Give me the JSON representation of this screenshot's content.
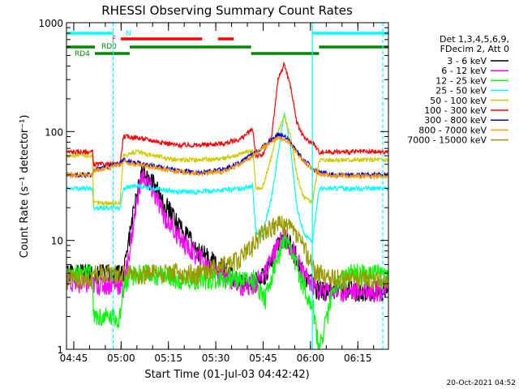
{
  "chart_data": {
    "type": "line",
    "title": "RHESSI Observing Summary Count Rates",
    "xlabel": "Start Time (01-Jul-03 04:42:42)",
    "ylabel": "Count Rate (s⁻¹ detector⁻¹)",
    "yscale": "log",
    "ylim": [
      1,
      1000
    ],
    "xlim_minutes": [
      0,
      102
    ],
    "x_unit": "minutes after 04:42:42",
    "x_ticks": [
      {
        "label": "04:45",
        "minute": 2.3
      },
      {
        "label": "05:00",
        "minute": 17.3
      },
      {
        "label": "05:15",
        "minute": 32.3
      },
      {
        "label": "05:30",
        "minute": 47.3
      },
      {
        "label": "05:45",
        "minute": 62.3
      },
      {
        "label": "06:00",
        "minute": 77.3
      },
      {
        "label": "06:15",
        "minute": 92.3
      }
    ],
    "y_ticks": [
      {
        "label": "1",
        "value": 1
      },
      {
        "label": "10",
        "value": 10
      },
      {
        "label": "100",
        "value": 100
      },
      {
        "label": "1000",
        "value": 1000
      }
    ],
    "legend_header": [
      "Det 1,3,4,5,6,9,",
      "FDecim 2, Att 0"
    ],
    "series": [
      {
        "name": "3 - 6 keV",
        "color": "#000000",
        "x": [
          0,
          8.3,
          8.5,
          14,
          17,
          18,
          22,
          24,
          27,
          32,
          38,
          42,
          48,
          55,
          59,
          63,
          66,
          69,
          72,
          75,
          78,
          80
        ],
        "y": [
          5,
          5,
          5,
          5,
          5,
          5,
          25,
          45,
          35,
          20,
          11,
          8,
          6,
          4,
          4,
          5,
          8,
          11,
          8,
          5,
          4,
          3.5
        ]
      },
      {
        "name": "6 - 12 keV",
        "color": "#ff00ff",
        "x": [
          0,
          8.3,
          8.5,
          14,
          17,
          18,
          22,
          24,
          27,
          32,
          38,
          42,
          48,
          55,
          59,
          63,
          66,
          69,
          72,
          75,
          78,
          80
        ],
        "y": [
          4,
          4,
          4,
          4,
          4,
          3.5,
          20,
          40,
          30,
          15,
          9,
          7,
          5,
          4,
          4,
          5,
          8,
          11,
          8,
          5,
          4,
          3.5
        ]
      },
      {
        "name": "12 - 25 keV",
        "color": "#00ff00",
        "x": [
          0,
          8.3,
          8.5,
          14,
          17,
          18,
          22,
          28,
          35,
          42,
          50,
          55,
          59,
          63,
          66,
          69,
          72,
          75,
          78,
          80,
          85,
          90,
          94,
          100
        ],
        "y": [
          5,
          5,
          2,
          2,
          2,
          4,
          5,
          5,
          4.5,
          4.5,
          4.5,
          4.5,
          4.5,
          3,
          6,
          10,
          7,
          4,
          2.5,
          1,
          4,
          5,
          5,
          5
        ]
      },
      {
        "name": "25 - 50 keV",
        "color": "#00ffff",
        "x": [
          0,
          8.3,
          8.5,
          14,
          17,
          18,
          22,
          28,
          35,
          42,
          50,
          55,
          59,
          60,
          62,
          65,
          67,
          69,
          71,
          73,
          75,
          77,
          78,
          80,
          85,
          90,
          94,
          100
        ],
        "y": [
          30,
          30,
          20,
          20,
          20,
          30,
          32,
          30,
          28,
          28,
          29,
          30,
          32,
          12,
          11,
          25,
          60,
          150,
          70,
          20,
          12,
          10,
          10,
          30,
          30,
          30,
          30,
          30
        ]
      },
      {
        "name": "50 - 100 keV",
        "color": "#cccc00",
        "x": [
          0,
          8.3,
          8.5,
          14,
          17,
          18,
          22,
          28,
          35,
          42,
          50,
          55,
          59,
          60,
          62,
          65,
          67,
          69,
          71,
          73,
          75,
          77,
          78,
          80,
          85,
          90,
          94,
          100
        ],
        "y": [
          60,
          60,
          22,
          22,
          22,
          60,
          65,
          60,
          55,
          55,
          57,
          62,
          68,
          30,
          30,
          60,
          100,
          140,
          90,
          40,
          25,
          23,
          23,
          55,
          55,
          55,
          55,
          55
        ]
      },
      {
        "name": "100 - 300 keV",
        "color": "#ff0000",
        "x": [
          0,
          8.3,
          8.5,
          14,
          17,
          18,
          22,
          28,
          35,
          42,
          50,
          55,
          59,
          60,
          62,
          65,
          67,
          69,
          71,
          73,
          75,
          77,
          78,
          80,
          85,
          90,
          94,
          100
        ],
        "y": [
          65,
          65,
          50,
          50,
          50,
          90,
          88,
          82,
          75,
          75,
          78,
          85,
          105,
          60,
          60,
          90,
          300,
          420,
          260,
          120,
          90,
          80,
          80,
          65,
          65,
          65,
          65,
          65
        ]
      },
      {
        "name": "300 - 800 keV",
        "color": "#0000cc",
        "x": [
          0,
          8.3,
          8.5,
          14,
          17,
          18,
          22,
          28,
          35,
          42,
          50,
          55,
          59,
          60,
          62,
          65,
          67,
          69,
          71,
          73,
          75,
          77,
          78,
          80,
          85,
          90,
          94,
          100
        ],
        "y": [
          40,
          40,
          45,
          48,
          52,
          55,
          52,
          48,
          44,
          42,
          45,
          52,
          62,
          65,
          72,
          85,
          95,
          92,
          80,
          65,
          55,
          50,
          45,
          42,
          40,
          40,
          40,
          40
        ]
      },
      {
        "name": "800 - 7000 keV",
        "color": "#ff9900",
        "x": [
          0,
          8.3,
          8.5,
          14,
          17,
          18,
          22,
          28,
          35,
          42,
          50,
          55,
          59,
          60,
          62,
          65,
          67,
          69,
          71,
          73,
          75,
          77,
          78,
          80,
          85,
          90,
          94,
          100
        ],
        "y": [
          40,
          40,
          44,
          47,
          50,
          53,
          50,
          47,
          43,
          41,
          43,
          50,
          60,
          63,
          70,
          80,
          88,
          86,
          78,
          63,
          53,
          48,
          44,
          41,
          39,
          39,
          39,
          39
        ]
      },
      {
        "name": "7000 - 15000 keV",
        "color": "#999900",
        "x": [
          0,
          8.3,
          8.5,
          14,
          17,
          18,
          22,
          28,
          35,
          42,
          50,
          55,
          59,
          60,
          62,
          65,
          67,
          69,
          71,
          73,
          75,
          77,
          78,
          80,
          85,
          90,
          94,
          100
        ],
        "y": [
          4.5,
          4.5,
          5,
          5,
          5,
          5,
          5,
          5,
          5,
          5,
          6,
          7,
          9,
          10,
          12,
          13,
          14,
          14,
          13,
          11,
          9,
          7,
          5.5,
          5,
          4.5,
          4.5,
          4.5,
          4.5
        ]
      }
    ],
    "vertical_markers": [
      {
        "minute": 14.8,
        "color": "#00ffff",
        "style": "dashed"
      },
      {
        "minute": 77.9,
        "color": "#00ffff",
        "style": "solid"
      },
      {
        "minute": 100.2,
        "color": "#00ffff",
        "style": "dashed"
      }
    ],
    "flag_bars": [
      {
        "label": "N",
        "color": "#00ffff",
        "row": 1,
        "segments": [
          [
            0,
            14.8
          ],
          [
            77.9,
            102
          ]
        ]
      },
      {
        "label": "F",
        "color": "#ff0000",
        "row": 2,
        "segments": [
          [
            17.2,
            43
          ],
          [
            48,
            53
          ]
        ]
      },
      {
        "label": "RD0",
        "color": "#008800",
        "row": 3,
        "segments": [
          [
            0,
            9
          ],
          [
            20,
            58.5
          ],
          [
            80,
            102
          ]
        ]
      },
      {
        "label": "RD4",
        "color": "#008800",
        "row": 4,
        "segments": [
          [
            9,
            20
          ],
          [
            58.5,
            80
          ]
        ]
      }
    ],
    "footer": "20-Oct-2021 04:52"
  }
}
